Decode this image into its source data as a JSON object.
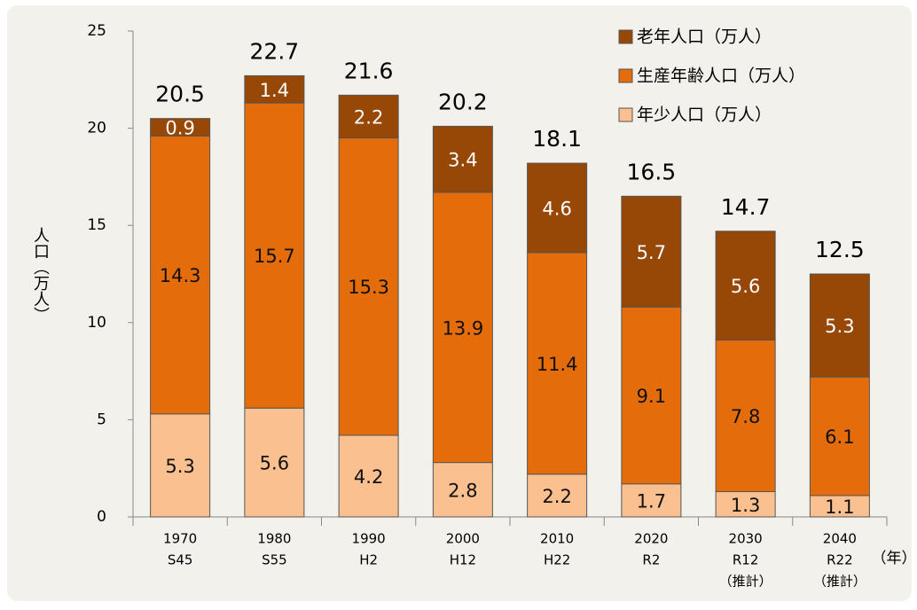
{
  "chart_data": {
    "type": "stacked_bar",
    "y_label": "人口（万人）",
    "x_label": "（年）",
    "categories": [
      [
        "1970",
        "S45"
      ],
      [
        "1980",
        "S55"
      ],
      [
        "1990",
        "H2"
      ],
      [
        "2000",
        "H12"
      ],
      [
        "2010",
        "H22"
      ],
      [
        "2020",
        "R2"
      ],
      [
        "2030",
        "R12",
        "（推計）"
      ],
      [
        "2040",
        "R22",
        "（推計）"
      ]
    ],
    "series": [
      {
        "name": "年少人口（万人）",
        "color": "#fac090",
        "values": [
          5.3,
          5.6,
          4.2,
          2.8,
          2.2,
          1.7,
          1.3,
          1.1
        ]
      },
      {
        "name": "生産年齢人口（万人）",
        "color": "#e46c0a",
        "values": [
          14.3,
          15.7,
          15.3,
          13.9,
          11.4,
          9.1,
          7.8,
          6.1
        ]
      },
      {
        "name": "老年人口（万人）",
        "color": "#974706",
        "values": [
          0.9,
          1.4,
          2.2,
          3.4,
          4.6,
          5.7,
          5.6,
          5.3
        ]
      }
    ],
    "totals": [
      20.5,
      22.7,
      21.6,
      20.2,
      18.1,
      16.5,
      14.7,
      12.5
    ],
    "ylim": [
      0,
      25
    ],
    "yticks": [
      0,
      5,
      10,
      15,
      20,
      25
    ]
  }
}
